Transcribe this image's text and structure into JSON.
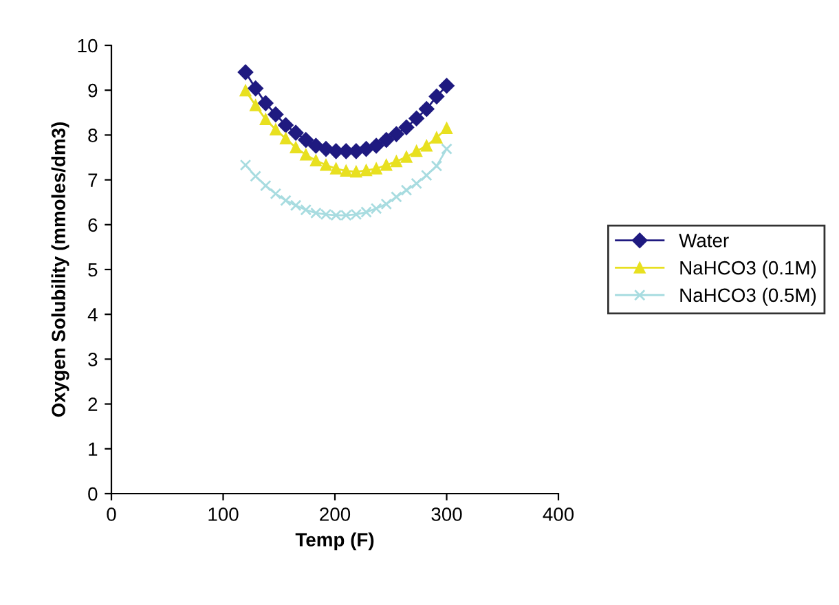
{
  "chart_data": {
    "type": "line",
    "xlabel": "Temp (F)",
    "ylabel": "Oxygen Solubility (mmoles/dm3)",
    "x": [
      120,
      129,
      138,
      147,
      156,
      165,
      174,
      183,
      192,
      201,
      210,
      219,
      228,
      237,
      246,
      255,
      264,
      273,
      282,
      291,
      300
    ],
    "series": [
      {
        "name": "Water",
        "color": "#1f1a80",
        "marker": "diamond",
        "values": [
          9.4,
          9.04,
          8.71,
          8.46,
          8.22,
          8.05,
          7.89,
          7.76,
          7.69,
          7.64,
          7.64,
          7.64,
          7.69,
          7.76,
          7.89,
          8.02,
          8.17,
          8.37,
          8.58,
          8.86,
          9.1
        ]
      },
      {
        "name": "NaHCO3 (0.1M)",
        "color": "#e8e020",
        "marker": "triangle",
        "values": [
          8.99,
          8.66,
          8.35,
          8.12,
          7.92,
          7.72,
          7.56,
          7.43,
          7.33,
          7.25,
          7.2,
          7.18,
          7.21,
          7.25,
          7.33,
          7.41,
          7.51,
          7.64,
          7.76,
          7.94,
          8.15
        ]
      },
      {
        "name": "NaHCO3 (0.5M)",
        "color": "#a8dce0",
        "marker": "cross",
        "values": [
          7.33,
          7.08,
          6.87,
          6.69,
          6.54,
          6.43,
          6.33,
          6.26,
          6.23,
          6.21,
          6.21,
          6.23,
          6.28,
          6.36,
          6.46,
          6.62,
          6.77,
          6.92,
          7.1,
          7.31,
          7.69
        ]
      }
    ],
    "xlim": [
      0,
      400
    ],
    "xticks": [
      0,
      100,
      200,
      300,
      400
    ],
    "ylim": [
      0,
      10
    ],
    "yticks": [
      0,
      1,
      2,
      3,
      4,
      5,
      6,
      7,
      8,
      9,
      10
    ],
    "grid": false,
    "legend": "right",
    "line_style": "solid"
  }
}
